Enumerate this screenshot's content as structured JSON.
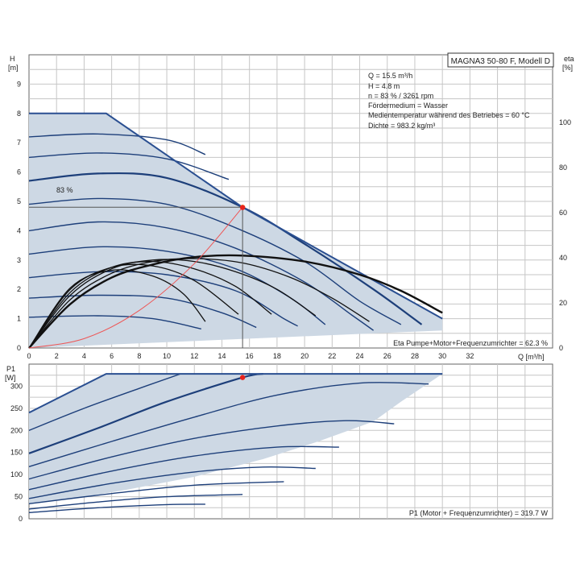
{
  "colors": {
    "region": "#cdd8e4",
    "curve": "#1d3f7a",
    "envelope": "#2a4f91",
    "efficiency": "#111111",
    "system": "#ee5555",
    "duty_point_h": "#f0a400",
    "duty_point": "#e8231d",
    "grid": "#c6c6c6",
    "axis": "#333333"
  },
  "chart_data": [
    {
      "type": "line",
      "title": "MAGNA3 50-80 F, Modell D",
      "xlabel": "Q [m³/h]",
      "ylabel": "H",
      "yunit": "[m]",
      "y2label": "eta",
      "y2unit": "[%]",
      "xlim": [
        0,
        38
      ],
      "ylim": [
        0,
        10
      ],
      "y2lim": [
        0,
        130
      ],
      "xticks": [
        0,
        2,
        4,
        6,
        8,
        10,
        12,
        14,
        16,
        18,
        20,
        22,
        24,
        26,
        28,
        30,
        32
      ],
      "yticks": [
        0,
        1,
        2,
        3,
        4,
        5,
        6,
        7,
        8,
        9
      ],
      "y2ticks": [
        0,
        20,
        40,
        60,
        80,
        100
      ],
      "grid": true,
      "info_lines": [
        "Q = 15.5 m³/h",
        "H = 4.8 m",
        "n = 83 % / 3261 rpm",
        "Fördermedium = Wasser",
        "Medientemperatur während des Betriebes = 60 °C",
        "Dichte = 983.2 kg/m³"
      ],
      "curve_label": "83 %",
      "footer_note": "Eta Pumpe+Motor+Frequenzumrichter = 62.3 %",
      "duty_point": {
        "q": 15.5,
        "h": 4.8
      },
      "efficiency_point": {
        "q": 15.5,
        "eta": 62.3
      },
      "envelope": [
        [
          0,
          8
        ],
        [
          5.6,
          8
        ],
        [
          15.5,
          4.8
        ],
        [
          30,
          1
        ]
      ],
      "region": [
        [
          0,
          0
        ],
        [
          0,
          8
        ],
        [
          5.6,
          8
        ],
        [
          15.5,
          4.8
        ],
        [
          30,
          1
        ],
        [
          30,
          0.6
        ],
        [
          0,
          0
        ]
      ],
      "series": [
        {
          "points": [
            [
              0,
              7.2
            ],
            [
              5,
              7.3
            ],
            [
              10,
              7.1
            ],
            [
              12.8,
              6.6
            ]
          ]
        },
        {
          "points": [
            [
              0,
              6.5
            ],
            [
              5,
              6.65
            ],
            [
              10,
              6.45
            ],
            [
              14.5,
              5.75
            ]
          ]
        },
        {
          "name": "83 %",
          "points": [
            [
              0,
              5.7
            ],
            [
              5,
              5.95
            ],
            [
              10,
              5.8
            ],
            [
              15.5,
              4.8
            ],
            [
              20,
              3.55
            ],
            [
              25,
              2.0
            ],
            [
              28.5,
              0.8
            ]
          ]
        },
        {
          "points": [
            [
              0,
              4.9
            ],
            [
              5,
              5.1
            ],
            [
              10,
              4.9
            ],
            [
              15,
              4.1
            ],
            [
              20,
              2.95
            ],
            [
              24,
              1.6
            ],
            [
              27,
              0.8
            ]
          ]
        },
        {
          "points": [
            [
              0,
              4.0
            ],
            [
              5,
              4.3
            ],
            [
              10,
              4.1
            ],
            [
              15,
              3.4
            ],
            [
              20,
              2.25
            ],
            [
              23.5,
              1.1
            ],
            [
              25,
              0.6
            ]
          ]
        },
        {
          "points": [
            [
              0,
              3.2
            ],
            [
              5,
              3.45
            ],
            [
              10,
              3.3
            ],
            [
              15,
              2.7
            ],
            [
              19,
              1.7
            ],
            [
              21.5,
              0.8
            ]
          ]
        },
        {
          "points": [
            [
              0,
              2.4
            ],
            [
              5,
              2.6
            ],
            [
              10,
              2.5
            ],
            [
              15,
              1.95
            ],
            [
              18.5,
              1.0
            ],
            [
              19.5,
              0.75
            ]
          ]
        },
        {
          "points": [
            [
              0,
              1.7
            ],
            [
              5,
              1.8
            ],
            [
              10,
              1.7
            ],
            [
              14,
              1.2
            ],
            [
              16.5,
              0.7
            ]
          ]
        },
        {
          "points": [
            [
              0,
              1.05
            ],
            [
              5,
              1.1
            ],
            [
              9,
              1.0
            ],
            [
              12.5,
              0.65
            ]
          ]
        }
      ],
      "efficiency_curves": [
        {
          "points": [
            [
              0,
              0
            ],
            [
              3,
              1.5
            ],
            [
              6,
              2.4
            ],
            [
              9,
              2.85
            ],
            [
              12,
              3.1
            ],
            [
              15.5,
              3.15
            ],
            [
              20,
              2.95
            ],
            [
              24,
              2.5
            ],
            [
              27,
              1.95
            ],
            [
              30,
              1.2
            ]
          ]
        },
        {
          "points": [
            [
              0,
              0
            ],
            [
              3,
              1.65
            ],
            [
              6,
              2.55
            ],
            [
              9,
              2.95
            ],
            [
              12,
              3.05
            ],
            [
              15.5,
              2.9
            ],
            [
              19,
              2.4
            ],
            [
              22,
              1.7
            ],
            [
              24.7,
              0.9
            ]
          ]
        },
        {
          "points": [
            [
              0,
              0
            ],
            [
              3,
              1.8
            ],
            [
              6,
              2.7
            ],
            [
              9,
              3.0
            ],
            [
              12,
              2.95
            ],
            [
              15,
              2.6
            ],
            [
              18,
              2.0
            ],
            [
              20.8,
              1.1
            ]
          ]
        },
        {
          "points": [
            [
              0,
              0
            ],
            [
              3,
              1.9
            ],
            [
              6,
              2.75
            ],
            [
              9,
              2.95
            ],
            [
              12,
              2.7
            ],
            [
              15,
              2.1
            ],
            [
              17.6,
              1.15
            ]
          ]
        },
        {
          "points": [
            [
              0,
              0
            ],
            [
              3,
              2.0
            ],
            [
              6,
              2.75
            ],
            [
              9,
              2.8
            ],
            [
              12,
              2.3
            ],
            [
              15.2,
              1.15
            ]
          ]
        },
        {
          "points": [
            [
              0,
              0
            ],
            [
              3,
              2.05
            ],
            [
              6,
              2.65
            ],
            [
              9,
              2.45
            ],
            [
              11.2,
              1.85
            ],
            [
              12.8,
              0.9
            ]
          ]
        }
      ],
      "system_curve": [
        [
          0,
          0
        ],
        [
          4,
          0.32
        ],
        [
          8,
          1.28
        ],
        [
          12,
          2.88
        ],
        [
          15.5,
          4.8
        ]
      ]
    },
    {
      "type": "line",
      "xlabel": "",
      "ylabel": "P1",
      "yunit": "[W]",
      "xlim": [
        0,
        38
      ],
      "ylim": [
        0,
        350
      ],
      "yticks": [
        0,
        50,
        100,
        150,
        200,
        250,
        300
      ],
      "grid": true,
      "footer_note": "P1 (Motor + Frequenzumrichter) = 319.7 W",
      "operating_point": {
        "q": 15.5,
        "p": 319.7
      },
      "envelope": [
        [
          0,
          240
        ],
        [
          5.6,
          328
        ],
        [
          30,
          328
        ]
      ],
      "region": [
        [
          0,
          240
        ],
        [
          5.6,
          328
        ],
        [
          30,
          328
        ],
        [
          27,
          265
        ],
        [
          25,
          220
        ],
        [
          21,
          175
        ],
        [
          17,
          135
        ],
        [
          12,
          95
        ],
        [
          7,
          65
        ],
        [
          3,
          45
        ],
        [
          0,
          35
        ],
        [
          0,
          240
        ]
      ],
      "series": [
        {
          "points": [
            [
              0,
              200
            ],
            [
              4,
              250
            ],
            [
              8,
              295
            ],
            [
              11,
              328
            ]
          ]
        },
        {
          "name": "83 %",
          "points": [
            [
              0,
              148
            ],
            [
              5,
              205
            ],
            [
              10,
              265
            ],
            [
              15.5,
              319.7
            ],
            [
              17,
              328
            ]
          ]
        },
        {
          "points": [
            [
              0,
              118
            ],
            [
              6,
              175
            ],
            [
              12,
              230
            ],
            [
              18,
              280
            ],
            [
              24,
              307
            ],
            [
              29,
              305
            ]
          ]
        },
        {
          "points": [
            [
              0,
              90
            ],
            [
              6,
              140
            ],
            [
              12,
              182
            ],
            [
              18,
              210
            ],
            [
              23,
              222
            ],
            [
              26.5,
              215
            ]
          ]
        },
        {
          "points": [
            [
              0,
              66
            ],
            [
              6,
              108
            ],
            [
              12,
              142
            ],
            [
              18,
              162
            ],
            [
              22.5,
              162
            ]
          ]
        },
        {
          "points": [
            [
              0,
              46
            ],
            [
              6,
              80
            ],
            [
              12,
              106
            ],
            [
              17,
              117
            ],
            [
              20.8,
              114
            ]
          ]
        },
        {
          "points": [
            [
              0,
              34
            ],
            [
              6,
              57
            ],
            [
              12,
              76
            ],
            [
              18.5,
              84
            ]
          ]
        },
        {
          "points": [
            [
              0,
              22
            ],
            [
              5,
              38
            ],
            [
              10,
              50
            ],
            [
              15.5,
              55
            ]
          ]
        },
        {
          "points": [
            [
              0,
              14
            ],
            [
              5,
              25
            ],
            [
              10,
              32
            ],
            [
              12.8,
              33
            ]
          ]
        }
      ]
    }
  ]
}
